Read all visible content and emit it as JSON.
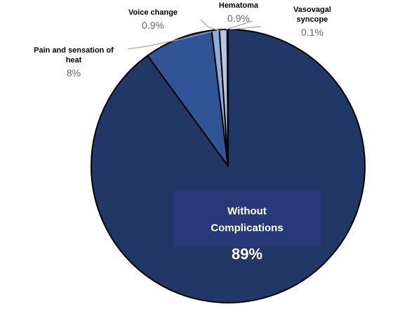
{
  "chart_data": {
    "type": "pie",
    "categories": [
      "Without Complications",
      "Pain and sensation of heat",
      "Voice change",
      "Hematoma",
      "Vasovagal syncope"
    ],
    "values": [
      89,
      8,
      0.9,
      0.9,
      0.1
    ],
    "value_labels": [
      "89%",
      "8%",
      "0.9%",
      "0.9%",
      "0.1%"
    ],
    "colors": [
      "#213866",
      "#2f5597",
      "#8eaadc",
      "#b4c7e7",
      "#dae3f3"
    ]
  }
}
